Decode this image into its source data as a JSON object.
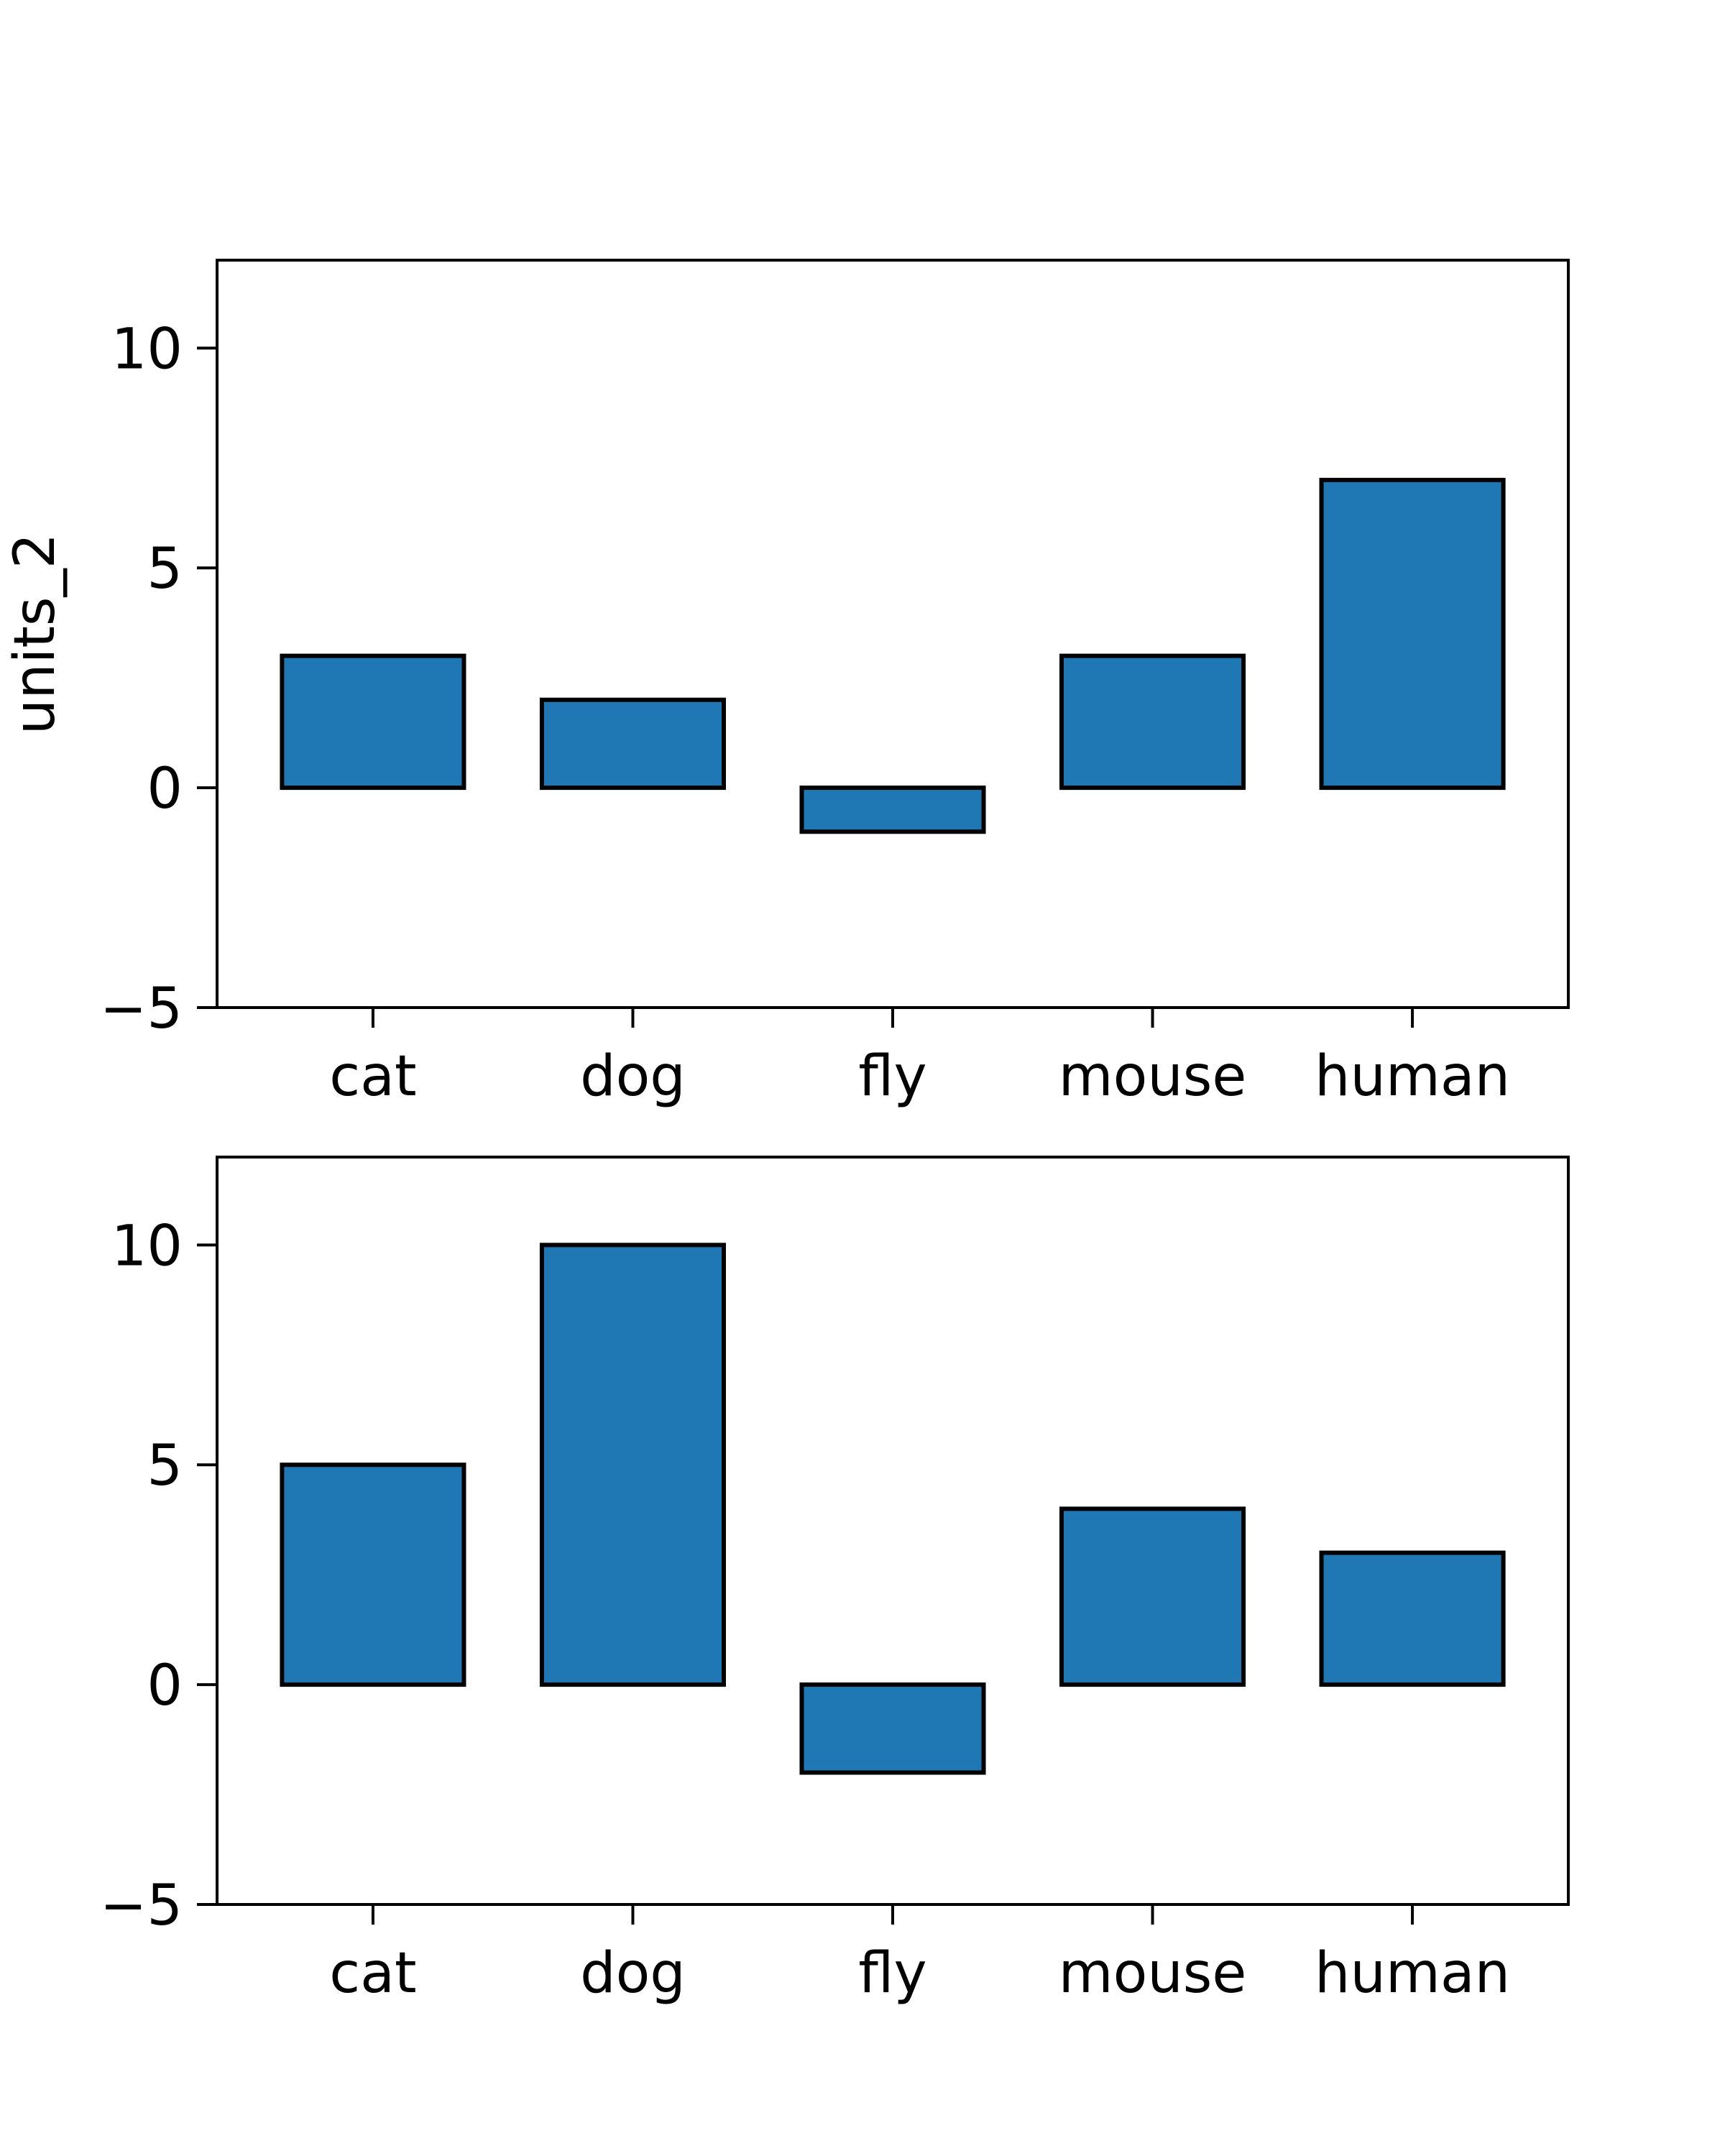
{
  "chart_data": [
    {
      "type": "bar",
      "categories": [
        "cat",
        "dog",
        "fly",
        "mouse",
        "human"
      ],
      "values": [
        3,
        2,
        -1,
        3,
        7
      ],
      "title": "",
      "xlabel": "",
      "ylabel": "units_2",
      "ylim": [
        -5,
        12
      ],
      "yticks": [
        -5,
        0,
        5,
        10
      ],
      "ytick_labels": [
        "−5",
        "0",
        "5",
        "10"
      ],
      "grid": false,
      "bar_color": "#1f77b4",
      "edge_color": "#000000"
    },
    {
      "type": "bar",
      "categories": [
        "cat",
        "dog",
        "fly",
        "mouse",
        "human"
      ],
      "values": [
        5,
        10,
        -2,
        4,
        3
      ],
      "title": "",
      "xlabel": "",
      "ylabel": "",
      "ylim": [
        -5,
        12
      ],
      "yticks": [
        -5,
        0,
        5,
        10
      ],
      "ytick_labels": [
        "−5",
        "0",
        "5",
        "10"
      ],
      "grid": false,
      "bar_color": "#1f77b4",
      "edge_color": "#000000"
    }
  ]
}
